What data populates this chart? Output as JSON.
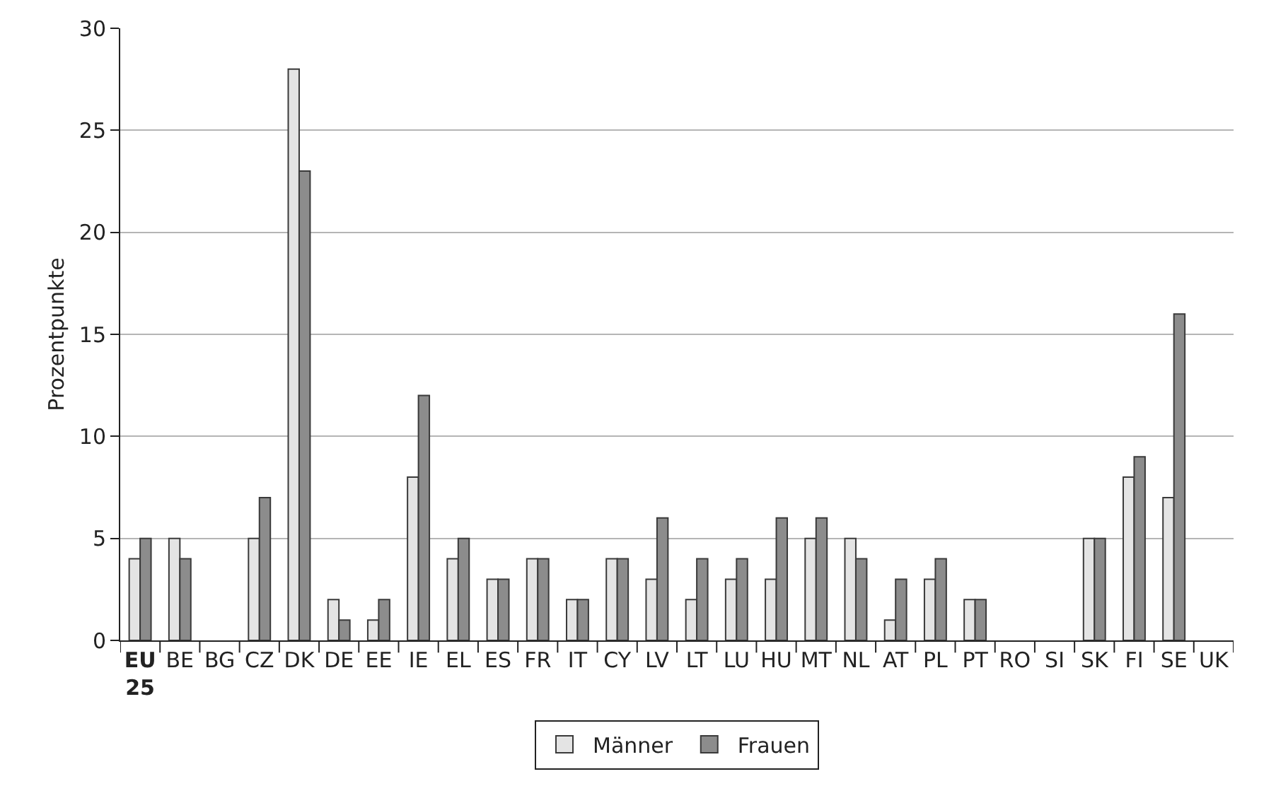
{
  "chart_data": {
    "type": "bar",
    "ylabel": "Prozentpunkte",
    "categories": [
      "EU 25",
      "BE",
      "BG",
      "CZ",
      "DK",
      "DE",
      "EE",
      "IE",
      "EL",
      "ES",
      "FR",
      "IT",
      "CY",
      "LV",
      "LT",
      "LU",
      "HU",
      "MT",
      "NL",
      "AT",
      "PL",
      "PT",
      "RO",
      "SI",
      "SK",
      "FI",
      "SE",
      "UK"
    ],
    "series": [
      {
        "name": "Männer",
        "color": "#e4e4e4",
        "values": [
          4,
          5,
          null,
          5,
          28,
          2,
          1,
          8,
          4,
          3,
          4,
          2,
          4,
          3,
          2,
          3,
          3,
          5,
          5,
          1,
          3,
          2,
          null,
          null,
          5,
          8,
          7,
          null
        ]
      },
      {
        "name": "Frauen",
        "color": "#8c8c8c",
        "values": [
          5,
          4,
          null,
          7,
          23,
          1,
          2,
          12,
          5,
          3,
          4,
          2,
          4,
          6,
          4,
          4,
          6,
          6,
          4,
          3,
          4,
          2,
          null,
          null,
          5,
          9,
          16,
          null
        ]
      }
    ],
    "ylim": [
      0,
      30
    ],
    "yticks": [
      0,
      5,
      10,
      15,
      20,
      25,
      30
    ],
    "grid": "y",
    "legend": "bottom"
  }
}
